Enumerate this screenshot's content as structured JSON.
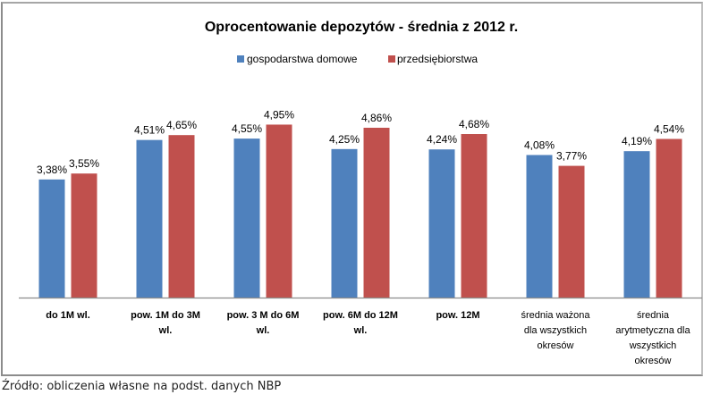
{
  "chart_data": {
    "type": "bar",
    "title": "Oprocentowanie depozytów - średnia z 2012 r.",
    "xlabel": "",
    "ylabel": "",
    "ylim": [
      0,
      5.5
    ],
    "grid": false,
    "legend_position": "top-center",
    "categories": [
      [
        "do 1M wl."
      ],
      [
        "pow. 1M do 3M",
        "wl."
      ],
      [
        "pow. 3 M do 6M",
        "wl."
      ],
      [
        "pow. 6M do 12M",
        "wl."
      ],
      [
        "pow. 12M"
      ],
      [
        "średnia ważona",
        "dla wszystkich",
        "okresów"
      ],
      [
        "średnia",
        "arytmetyczna dla",
        "wszystkich",
        "okresów"
      ]
    ],
    "category_bold": [
      true,
      true,
      true,
      true,
      true,
      false,
      false
    ],
    "series": [
      {
        "name": "gospodarstwa domowe",
        "color": "#4f81bd",
        "values": [
          3.38,
          4.51,
          4.55,
          4.25,
          4.24,
          4.08,
          4.19
        ],
        "labels": [
          "3,38%",
          "4,51%",
          "4,55%",
          "4,25%",
          "4,24%",
          "4,08%",
          "4,19%"
        ]
      },
      {
        "name": "przedsiębiorstwa",
        "color": "#c0504d",
        "values": [
          3.55,
          4.65,
          4.95,
          4.86,
          4.68,
          3.77,
          4.54
        ],
        "labels": [
          "3,55%",
          "4,65%",
          "4,95%",
          "4,86%",
          "4,68%",
          "3,77%",
          "4,54%"
        ]
      }
    ]
  },
  "footer": {
    "source": "Źródło: obliczenia własne na podst. danych NBP"
  },
  "colors": {
    "axis": "#8c8c8c",
    "frame": "#8c8c8c"
  }
}
